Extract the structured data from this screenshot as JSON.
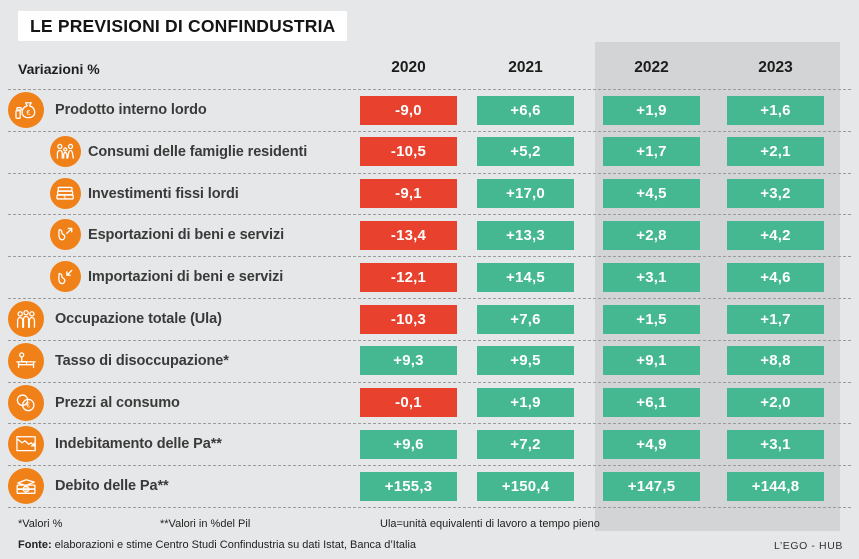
{
  "title": "LE PREVISIONI DI CONFINDUSTRIA",
  "table": {
    "corner_label": "Variazioni %",
    "years": [
      "2020",
      "2021",
      "2022",
      "2023"
    ],
    "rows": [
      {
        "label": "Prodotto interno lordo",
        "icon": "money-bag-icon",
        "indent": false,
        "values": [
          {
            "text": "-9,0",
            "color": "red"
          },
          {
            "text": "+6,6",
            "color": "green"
          },
          {
            "text": "+1,9",
            "color": "green"
          },
          {
            "text": "+1,6",
            "color": "green"
          }
        ]
      },
      {
        "label": "Consumi delle famiglie residenti",
        "icon": "family-icon",
        "indent": true,
        "values": [
          {
            "text": "-10,5",
            "color": "red"
          },
          {
            "text": "+5,2",
            "color": "green"
          },
          {
            "text": "+1,7",
            "color": "green"
          },
          {
            "text": "+2,1",
            "color": "green"
          }
        ]
      },
      {
        "label": "Investimenti fissi lordi",
        "icon": "banknotes-icon",
        "indent": true,
        "values": [
          {
            "text": "-9,1",
            "color": "red"
          },
          {
            "text": "+17,0",
            "color": "green"
          },
          {
            "text": "+4,5",
            "color": "green"
          },
          {
            "text": "+3,2",
            "color": "green"
          }
        ]
      },
      {
        "label": "Esportazioni di beni e servizi",
        "icon": "export-arrow-icon",
        "indent": true,
        "values": [
          {
            "text": "-13,4",
            "color": "red"
          },
          {
            "text": "+13,3",
            "color": "green"
          },
          {
            "text": "+2,8",
            "color": "green"
          },
          {
            "text": "+4,2",
            "color": "green"
          }
        ]
      },
      {
        "label": "Importazioni di beni e servizi",
        "icon": "import-arrow-icon",
        "indent": true,
        "values": [
          {
            "text": "-12,1",
            "color": "red"
          },
          {
            "text": "+14,5",
            "color": "green"
          },
          {
            "text": "+3,1",
            "color": "green"
          },
          {
            "text": "+4,6",
            "color": "green"
          }
        ]
      },
      {
        "label": "Occupazione totale (Ula)",
        "icon": "workers-icon",
        "indent": false,
        "values": [
          {
            "text": "-10,3",
            "color": "red"
          },
          {
            "text": "+7,6",
            "color": "green"
          },
          {
            "text": "+1,5",
            "color": "green"
          },
          {
            "text": "+1,7",
            "color": "green"
          }
        ]
      },
      {
        "label": "Tasso di disoccupazione*",
        "icon": "unemployed-bench-icon",
        "indent": false,
        "values": [
          {
            "text": "+9,3",
            "color": "green"
          },
          {
            "text": "+9,5",
            "color": "green"
          },
          {
            "text": "+9,1",
            "color": "green"
          },
          {
            "text": "+8,8",
            "color": "green"
          }
        ]
      },
      {
        "label": "Prezzi al consumo",
        "icon": "coins-icon",
        "indent": false,
        "values": [
          {
            "text": "-0,1",
            "color": "red"
          },
          {
            "text": "+1,9",
            "color": "green"
          },
          {
            "text": "+6,1",
            "color": "green"
          },
          {
            "text": "+2,0",
            "color": "green"
          }
        ]
      },
      {
        "label": "Indebitamento delle Pa**",
        "icon": "declining-chart-icon",
        "indent": false,
        "values": [
          {
            "text": "+9,6",
            "color": "green"
          },
          {
            "text": "+7,2",
            "color": "green"
          },
          {
            "text": "+4,9",
            "color": "green"
          },
          {
            "text": "+3,1",
            "color": "green"
          }
        ]
      },
      {
        "label": "Debito delle Pa**",
        "icon": "money-stack-icon",
        "indent": false,
        "values": [
          {
            "text": "+155,3",
            "color": "green"
          },
          {
            "text": "+150,4",
            "color": "green"
          },
          {
            "text": "+147,5",
            "color": "green"
          },
          {
            "text": "+144,8",
            "color": "green"
          }
        ]
      }
    ]
  },
  "footnotes": [
    "*Valori %",
    "**Valori in %del Pil",
    "Ula=unità equivalenti di lavoro a tempo pieno"
  ],
  "source": {
    "label": "Fonte:",
    "text": " elaborazioni e stime Centro Studi Confindustria su dati Istat, Banca d’Italia"
  },
  "credit": "L’EGO - HUB",
  "colors": {
    "negative": "#e8422f",
    "positive": "#45b892",
    "accent_orange": "#f08119",
    "band": "#d3d4d5",
    "background": "#e6e7e8"
  },
  "chart_data": {
    "type": "table",
    "title": "LE PREVISIONI DI CONFINDUSTRIA",
    "unit": "Variazioni %",
    "columns": [
      "2020",
      "2021",
      "2022",
      "2023"
    ],
    "rows": [
      {
        "label": "Prodotto interno lordo",
        "values": [
          -9.0,
          6.6,
          1.9,
          1.6
        ]
      },
      {
        "label": "Consumi delle famiglie residenti",
        "values": [
          -10.5,
          5.2,
          1.7,
          2.1
        ]
      },
      {
        "label": "Investimenti fissi lordi",
        "values": [
          -9.1,
          17.0,
          4.5,
          3.2
        ]
      },
      {
        "label": "Esportazioni di beni e servizi",
        "values": [
          -13.4,
          13.3,
          2.8,
          4.2
        ]
      },
      {
        "label": "Importazioni di beni e servizi",
        "values": [
          -12.1,
          14.5,
          3.1,
          4.6
        ]
      },
      {
        "label": "Occupazione totale (Ula)",
        "values": [
          -10.3,
          7.6,
          1.5,
          1.7
        ]
      },
      {
        "label": "Tasso di disoccupazione*",
        "values": [
          9.3,
          9.5,
          9.1,
          8.8
        ]
      },
      {
        "label": "Prezzi al consumo",
        "values": [
          -0.1,
          1.9,
          6.1,
          2.0
        ]
      },
      {
        "label": "Indebitamento delle Pa**",
        "values": [
          9.6,
          7.2,
          4.9,
          3.1
        ]
      },
      {
        "label": "Debito delle Pa**",
        "values": [
          155.3,
          150.4,
          147.5,
          144.8
        ]
      }
    ],
    "notes": "Red cells = negative values, green cells = positive values; 2022-2023 columns highlighted as forecasts"
  }
}
